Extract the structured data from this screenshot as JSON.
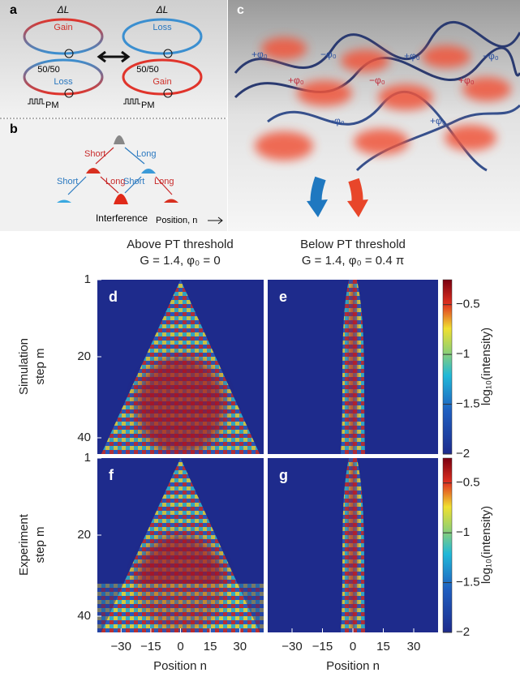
{
  "panel_a": {
    "label": "a",
    "delta_left": "ΔL",
    "delta_right": "ΔL",
    "top_left": "Gain",
    "bottom_left": "Loss",
    "ratio_left": "50/50",
    "pm_left": "PM",
    "top_right": "Loss",
    "bottom_right": "Gain",
    "ratio_right": "50/50",
    "pm_right": "PM"
  },
  "panel_b": {
    "label": "b",
    "branches": [
      "Short",
      "Long",
      "Short",
      "Long",
      "Short",
      "Long"
    ],
    "interference": "Interference",
    "axis": "Position, n"
  },
  "panel_c": {
    "label": "c",
    "phases": [
      "+φ₀",
      "−φ₀",
      "+φ₀",
      "−φ₀",
      "+φ₀",
      "−φ₀",
      "+φ₀",
      "−φ₀",
      "+φ₀"
    ]
  },
  "heatmaps": {
    "columns": [
      {
        "title": "Above PT threshold",
        "params": "G = 1.4,  φ₀ = 0"
      },
      {
        "title": "Below PT threshold",
        "params": "G = 1.4,  φ₀ = 0.4 π"
      }
    ],
    "rows": [
      {
        "label_1": "Simulation",
        "label_2": "step m"
      },
      {
        "label_1": "Experiment",
        "label_2": "step m"
      }
    ],
    "panel_labels": [
      "d",
      "e",
      "f",
      "g"
    ],
    "x_label": "Position n",
    "colorbar_label": "log₁₀(intensity)",
    "xlim": [
      -42,
      42
    ],
    "xticks": [
      {
        "value": -30,
        "label": "−30"
      },
      {
        "value": -15,
        "label": "−15"
      },
      0,
      15,
      30
    ],
    "ylim": [
      1,
      44
    ],
    "yticks": [
      1,
      20,
      40
    ],
    "clim": [
      -2,
      -0.25
    ],
    "cticks": [
      {
        "value": -2,
        "label": "−2"
      },
      {
        "value": -1.5,
        "label": "−1.5"
      },
      {
        "value": -1,
        "label": "−1"
      },
      {
        "value": -0.5,
        "label": "−0.5"
      }
    ]
  }
}
